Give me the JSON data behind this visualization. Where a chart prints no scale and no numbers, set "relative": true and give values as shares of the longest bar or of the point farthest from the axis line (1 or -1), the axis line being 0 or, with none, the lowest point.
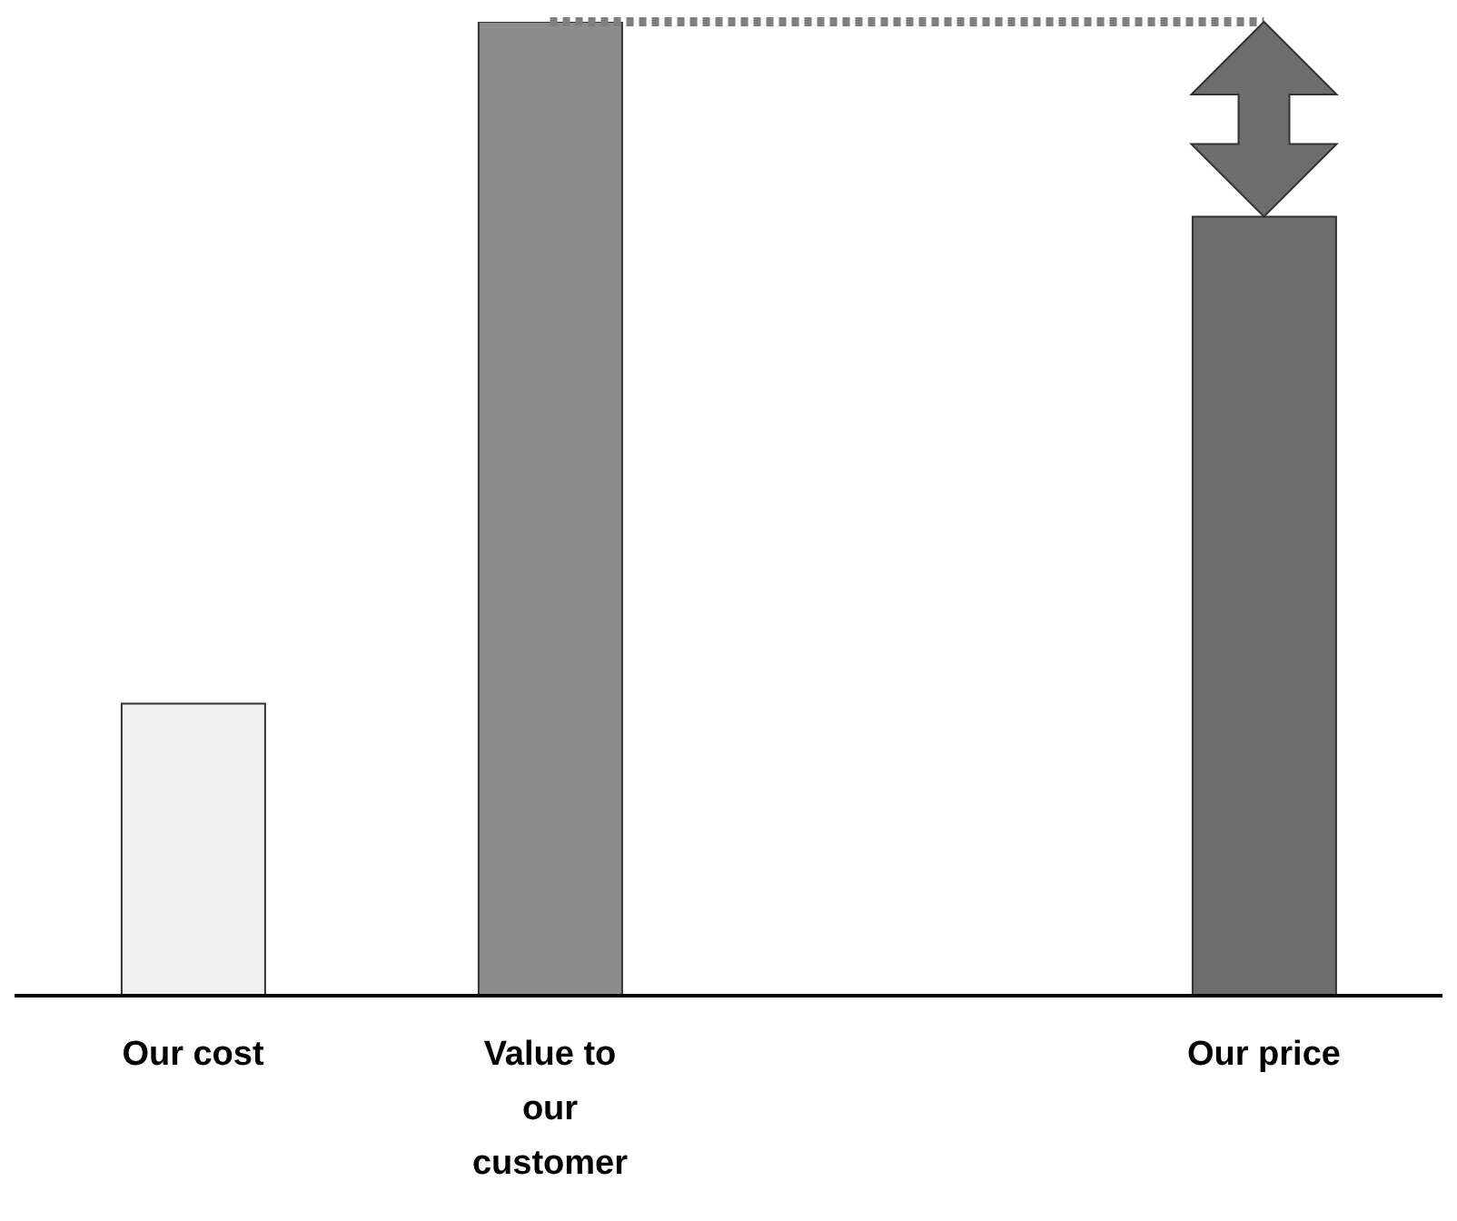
{
  "chart_data": {
    "type": "bar",
    "relative": true,
    "categories": [
      "Our cost",
      "Value to our customer",
      null,
      "Our price"
    ],
    "values": [
      0.3,
      1,
      null,
      0.8
    ],
    "colors": [
      "#f0f0f0",
      "#8c8c8c",
      "#6d6d6d",
      "#6d6d6d"
    ],
    "ref_lines": [
      {
        "axis": "y",
        "value": 1,
        "line_style": "dotted",
        "color": "#7f7f7f"
      }
    ],
    "grid": false,
    "legend": false
  }
}
